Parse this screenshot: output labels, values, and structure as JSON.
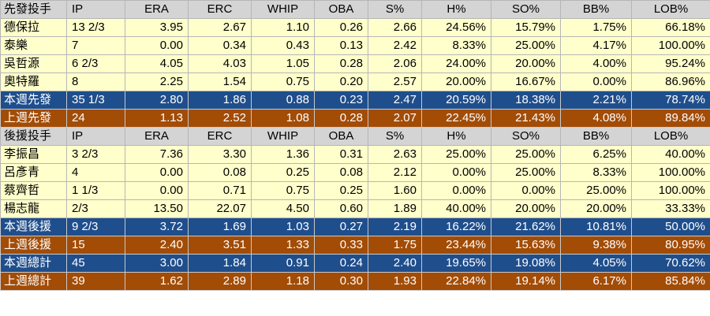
{
  "columns": [
    "IP",
    "ERA",
    "ERC",
    "WHIP",
    "OBA",
    "S%",
    "H%",
    "SO%",
    "BB%",
    "LOB%"
  ],
  "sections": [
    {
      "header": "先發投手",
      "rows": [
        {
          "style": "plain",
          "cells": [
            "德保拉",
            "13 2/3",
            "3.95",
            "2.67",
            "1.10",
            "0.26",
            "2.66",
            "24.56%",
            "15.79%",
            "1.75%",
            "66.18%"
          ]
        },
        {
          "style": "plain",
          "cells": [
            "泰樂",
            "7",
            "0.00",
            "0.34",
            "0.43",
            "0.13",
            "2.42",
            "8.33%",
            "25.00%",
            "4.17%",
            "100.00%"
          ]
        },
        {
          "style": "plain",
          "cells": [
            "吳哲源",
            "6 2/3",
            "4.05",
            "4.03",
            "1.05",
            "0.28",
            "2.06",
            "24.00%",
            "20.00%",
            "4.00%",
            "95.24%"
          ]
        },
        {
          "style": "plain",
          "cells": [
            "奧特羅",
            "8",
            "2.25",
            "1.54",
            "0.75",
            "0.20",
            "2.57",
            "20.00%",
            "16.67%",
            "0.00%",
            "86.96%"
          ]
        },
        {
          "style": "blue",
          "cells": [
            "本週先發",
            "35 1/3",
            "2.80",
            "1.86",
            "0.88",
            "0.23",
            "2.47",
            "20.59%",
            "18.38%",
            "2.21%",
            "78.74%"
          ]
        },
        {
          "style": "orange",
          "cells": [
            "上週先發",
            "24",
            "1.13",
            "2.52",
            "1.08",
            "0.28",
            "2.07",
            "22.45%",
            "21.43%",
            "4.08%",
            "89.84%"
          ]
        }
      ]
    },
    {
      "header": "後援投手",
      "rows": [
        {
          "style": "plain",
          "cells": [
            "李振昌",
            "3 2/3",
            "7.36",
            "3.30",
            "1.36",
            "0.31",
            "2.63",
            "25.00%",
            "25.00%",
            "6.25%",
            "40.00%"
          ]
        },
        {
          "style": "plain",
          "cells": [
            "呂彥青",
            "4",
            "0.00",
            "0.08",
            "0.25",
            "0.08",
            "2.12",
            "0.00%",
            "25.00%",
            "8.33%",
            "100.00%"
          ]
        },
        {
          "style": "plain",
          "cells": [
            "蔡齊哲",
            "1 1/3",
            "0.00",
            "0.71",
            "0.75",
            "0.25",
            "1.60",
            "0.00%",
            "0.00%",
            "25.00%",
            "100.00%"
          ]
        },
        {
          "style": "plain",
          "cells": [
            "楊志龍",
            "2/3",
            "13.50",
            "22.07",
            "4.50",
            "0.60",
            "1.89",
            "40.00%",
            "20.00%",
            "20.00%",
            "33.33%"
          ]
        },
        {
          "style": "blue",
          "cells": [
            "本週後援",
            "9 2/3",
            "3.72",
            "1.69",
            "1.03",
            "0.27",
            "2.19",
            "16.22%",
            "21.62%",
            "10.81%",
            "50.00%"
          ]
        },
        {
          "style": "orange",
          "cells": [
            "上週後援",
            "15",
            "2.40",
            "3.51",
            "1.33",
            "0.33",
            "1.75",
            "23.44%",
            "15.63%",
            "9.38%",
            "80.95%"
          ]
        },
        {
          "style": "blue",
          "cells": [
            "本週總計",
            "45",
            "3.00",
            "1.84",
            "0.91",
            "0.24",
            "2.40",
            "19.65%",
            "19.08%",
            "4.05%",
            "70.62%"
          ]
        },
        {
          "style": "orange",
          "cells": [
            "上週總計",
            "39",
            "1.62",
            "2.89",
            "1.18",
            "0.30",
            "1.93",
            "22.84%",
            "19.14%",
            "6.17%",
            "85.84%"
          ]
        }
      ]
    }
  ]
}
